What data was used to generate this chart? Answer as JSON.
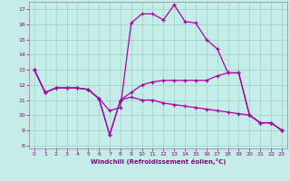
{
  "xlabel": "Windchill (Refroidissement éolien,°C)",
  "background_color": "#c5ede8",
  "line_color": "#aa00aa",
  "xlim": [
    -0.5,
    23.5
  ],
  "ylim": [
    7.8,
    17.5
  ],
  "yticks": [
    8,
    9,
    10,
    11,
    12,
    13,
    14,
    15,
    16,
    17
  ],
  "xticks": [
    0,
    1,
    2,
    3,
    4,
    5,
    6,
    7,
    8,
    9,
    10,
    11,
    12,
    13,
    14,
    15,
    16,
    17,
    18,
    19,
    20,
    21,
    22,
    23
  ],
  "line1_x": [
    0,
    1,
    2,
    3,
    4,
    5,
    6,
    7,
    8,
    9,
    10,
    11,
    12,
    13,
    14,
    15,
    16,
    17,
    18,
    19,
    20,
    21,
    22,
    23
  ],
  "line1_y": [
    13.0,
    11.5,
    11.8,
    11.8,
    11.8,
    11.7,
    11.1,
    10.3,
    10.5,
    16.1,
    16.7,
    16.7,
    16.3,
    17.3,
    16.2,
    16.1,
    15.0,
    14.4,
    12.8,
    12.8,
    10.0,
    9.5,
    9.5,
    9.0
  ],
  "line2_x": [
    0,
    1,
    2,
    3,
    4,
    5,
    6,
    7,
    8,
    9,
    10,
    11,
    12,
    13,
    14,
    15,
    16,
    17,
    18,
    19,
    20,
    21,
    22,
    23
  ],
  "line2_y": [
    13.0,
    11.5,
    11.8,
    11.8,
    11.8,
    11.7,
    11.1,
    8.7,
    11.0,
    11.5,
    12.0,
    12.2,
    12.3,
    12.3,
    12.3,
    12.3,
    12.3,
    12.6,
    12.8,
    12.8,
    10.0,
    9.5,
    9.5,
    9.0
  ],
  "line3_x": [
    0,
    1,
    2,
    3,
    4,
    5,
    6,
    7,
    8,
    9,
    10,
    11,
    12,
    13,
    14,
    15,
    16,
    17,
    18,
    19,
    20,
    21,
    22,
    23
  ],
  "line3_y": [
    13.0,
    11.5,
    11.8,
    11.8,
    11.8,
    11.7,
    11.1,
    8.7,
    11.0,
    11.2,
    11.0,
    11.0,
    10.8,
    10.7,
    10.6,
    10.5,
    10.4,
    10.3,
    10.2,
    10.1,
    10.0,
    9.5,
    9.5,
    9.0
  ]
}
